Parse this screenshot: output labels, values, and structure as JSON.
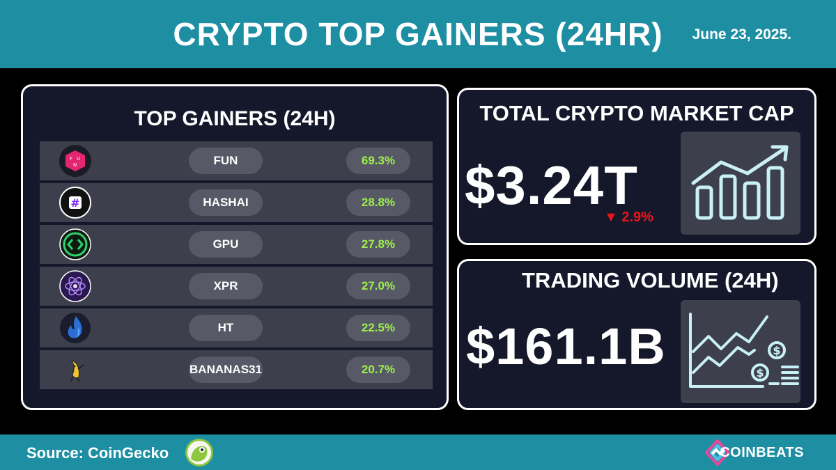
{
  "header": {
    "title": "CRYPTO TOP GAINERS (24HR)",
    "date": "June 23, 2025."
  },
  "top_gainers": {
    "title": "TOP GAINERS (24H)",
    "rows": [
      {
        "symbol": "FUN",
        "change": "69.3%",
        "icon": "fun-token-icon"
      },
      {
        "symbol": "HASHAI",
        "change": "28.8%",
        "icon": "hashai-token-icon"
      },
      {
        "symbol": "GPU",
        "change": "27.8%",
        "icon": "gpu-token-icon"
      },
      {
        "symbol": "XPR",
        "change": "27.0%",
        "icon": "xpr-token-icon"
      },
      {
        "symbol": "HT",
        "change": "22.5%",
        "icon": "ht-token-icon"
      },
      {
        "symbol": "BANANAS31",
        "change": "20.7%",
        "icon": "bananas31-token-icon"
      }
    ]
  },
  "market_cap": {
    "title": "TOTAL CRYPTO MARKET CAP",
    "value": "$3.24T",
    "change": "▼ 2.9%",
    "icon": "bar-chart-uptrend-icon"
  },
  "trading_volume": {
    "title": "TRADING VOLUME (24H)",
    "value": "$161.1B",
    "icon": "line-chart-coins-icon"
  },
  "footer": {
    "source": "Source: CoinGecko",
    "source_icon": "coingecko-logo-icon",
    "brand": "COINBEATS",
    "brand_icon": "coinbeats-logo-icon"
  },
  "colors": {
    "header_bg": "#1e8fa3",
    "panel_bg": "#15172a",
    "row_bg": "#3d404c",
    "pill_bg": "#575a66",
    "gain_green": "#9ef04c",
    "loss_red": "#e8161b"
  }
}
